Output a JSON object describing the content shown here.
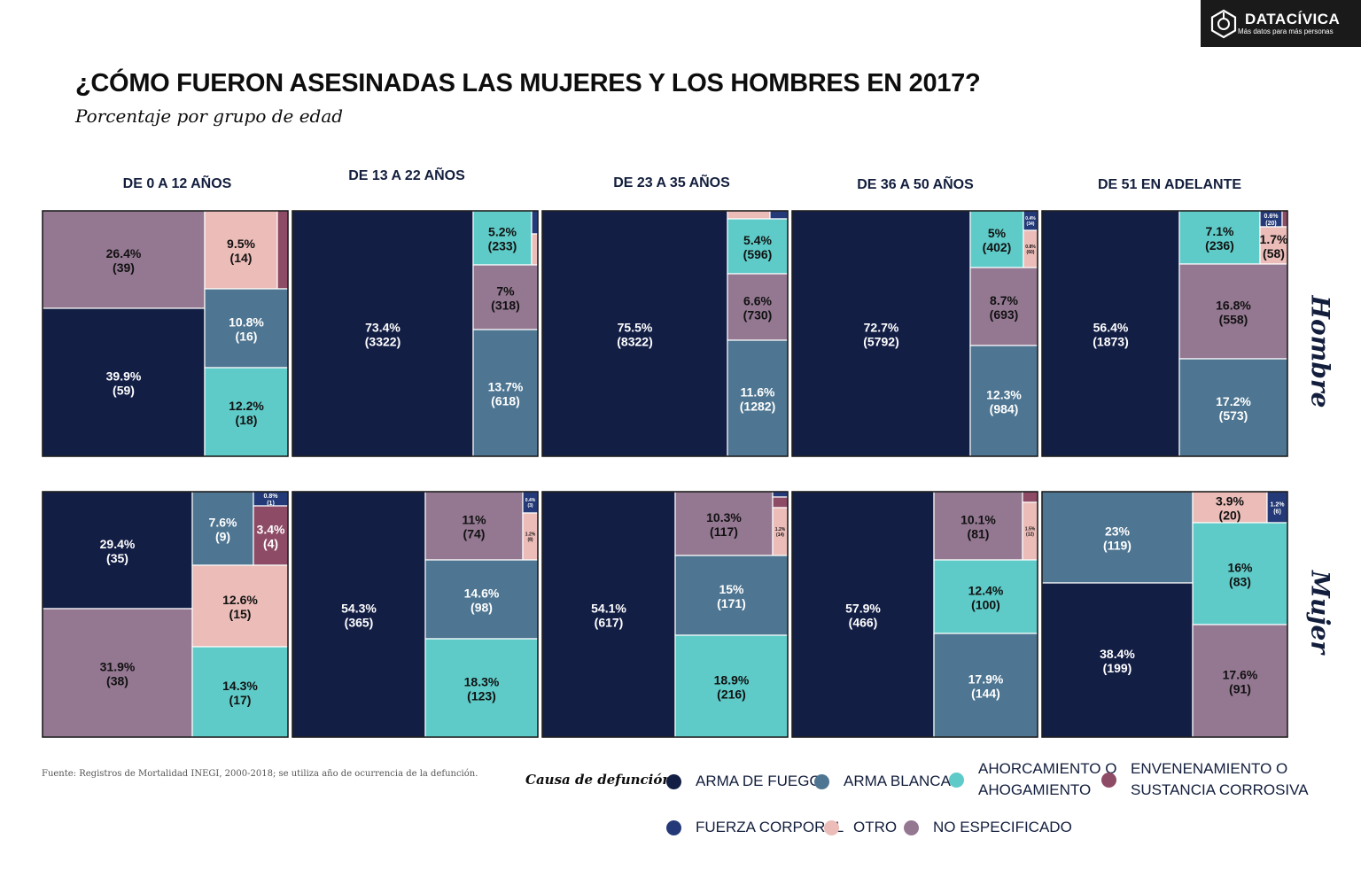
{
  "logo": {
    "name": "DATACÍVICA",
    "tagline": "Más datos para más personas",
    "icon": "datacivica-hexagon-icon"
  },
  "title": "¿CÓMO FUERON ASESINADAS LAS MUJERES Y LOS HOMBRES EN 2017?",
  "subtitle": "Porcentaje por grupo de edad",
  "source": "Fuente: Registros de Mortalidad INEGI, 2000-2018; se utiliza año de ocurrencia de la defunción.",
  "legend": {
    "title": "Causa de defunción",
    "items": [
      {
        "key": "fuego",
        "line1": "ARMA DE FUEGO",
        "line2": "",
        "color": "#131e45"
      },
      {
        "key": "blanca",
        "line1": "ARMA BLANCA",
        "line2": "",
        "color": "#4e7591"
      },
      {
        "key": "ahorc",
        "line1": "AHORCAMIENTO O",
        "line2": "AHOGAMIENTO",
        "color": "#5ecbc8"
      },
      {
        "key": "enven",
        "line1": "ENVENENAMIENTO O",
        "line2": "SUSTANCIA CORROSIVA",
        "color": "#8e4b66"
      },
      {
        "key": "fuerza",
        "line1": "FUERZA CORPORAL",
        "line2": "",
        "color": "#243a78"
      },
      {
        "key": "otro",
        "line1": "OTRO",
        "line2": "",
        "color": "#ebbcb8"
      },
      {
        "key": "noesp",
        "line1": "NO ESPECIFICADO",
        "line2": "",
        "color": "#947892"
      }
    ]
  },
  "chart_data": {
    "type": "treemap",
    "title": "¿CÓMO FUERON ASESINADAS LAS MUJERES Y LOS HOMBRES EN 2017?",
    "subtitle": "Porcentaje por grupo de edad",
    "age_groups": [
      "DE 0 A 12 AÑOS",
      "DE 13 A 22 AÑOS",
      "DE 23 A 35 AÑOS",
      "DE 36 A 50 AÑOS",
      "DE 51 EN ADELANTE"
    ],
    "rows": [
      "Hombre",
      "Mujer"
    ],
    "panels": [
      {
        "row": "Hombre",
        "group": "DE 0 A 12 AÑOS",
        "cells": [
          {
            "cat": "noesp",
            "pct": "26.4%",
            "n": "(39)"
          },
          {
            "cat": "otro",
            "pct": "9.5%",
            "n": "(14)"
          },
          {
            "cat": "enven",
            "pct": "",
            "n": ""
          },
          {
            "cat": "fuego",
            "pct": "39.9%",
            "n": "(59)"
          },
          {
            "cat": "blanca",
            "pct": "10.8%",
            "n": "(16)"
          },
          {
            "cat": "ahorc",
            "pct": "12.2%",
            "n": "(18)"
          }
        ]
      },
      {
        "row": "Hombre",
        "group": "DE 13 A 22 AÑOS",
        "cells": [
          {
            "cat": "fuego",
            "pct": "73.4%",
            "n": "(3322)"
          },
          {
            "cat": "ahorc",
            "pct": "5.2%",
            "n": "(233)"
          },
          {
            "cat": "fuerza",
            "pct": "",
            "n": ""
          },
          {
            "cat": "otro",
            "pct": "",
            "n": ""
          },
          {
            "cat": "noesp",
            "pct": "7%",
            "n": "(318)"
          },
          {
            "cat": "blanca",
            "pct": "13.7%",
            "n": "(618)"
          }
        ]
      },
      {
        "row": "Hombre",
        "group": "DE 23 A 35 AÑOS",
        "cells": [
          {
            "cat": "fuego",
            "pct": "75.5%",
            "n": "(8322)"
          },
          {
            "cat": "otro",
            "pct": "",
            "n": ""
          },
          {
            "cat": "fuerza",
            "pct": "",
            "n": ""
          },
          {
            "cat": "ahorc",
            "pct": "5.4%",
            "n": "(596)"
          },
          {
            "cat": "noesp",
            "pct": "6.6%",
            "n": "(730)"
          },
          {
            "cat": "blanca",
            "pct": "11.6%",
            "n": "(1282)"
          }
        ]
      },
      {
        "row": "Hombre",
        "group": "DE 36 A 50 AÑOS",
        "cells": [
          {
            "cat": "fuego",
            "pct": "72.7%",
            "n": "(5792)"
          },
          {
            "cat": "ahorc",
            "pct": "5%",
            "n": "(402)"
          },
          {
            "cat": "fuerza",
            "pct": "0.4%",
            "n": "(34)"
          },
          {
            "cat": "otro",
            "pct": "0.8%",
            "n": "(60)"
          },
          {
            "cat": "enven",
            "pct": "",
            "n": ""
          },
          {
            "cat": "noesp",
            "pct": "8.7%",
            "n": "(693)"
          },
          {
            "cat": "blanca",
            "pct": "12.3%",
            "n": "(984)"
          }
        ]
      },
      {
        "row": "Hombre",
        "group": "DE 51 EN ADELANTE",
        "cells": [
          {
            "cat": "fuego",
            "pct": "56.4%",
            "n": "(1873)"
          },
          {
            "cat": "ahorc",
            "pct": "7.1%",
            "n": "(236)"
          },
          {
            "cat": "fuerza",
            "pct": "0.6%",
            "n": "(20)"
          },
          {
            "cat": "enven",
            "pct": "",
            "n": ""
          },
          {
            "cat": "otro",
            "pct": "1.7%",
            "n": "(58)"
          },
          {
            "cat": "noesp",
            "pct": "16.8%",
            "n": "(558)"
          },
          {
            "cat": "blanca",
            "pct": "17.2%",
            "n": "(573)"
          }
        ]
      },
      {
        "row": "Mujer",
        "group": "DE 0 A 12 AÑOS",
        "cells": [
          {
            "cat": "fuego",
            "pct": "29.4%",
            "n": "(35)"
          },
          {
            "cat": "blanca",
            "pct": "7.6%",
            "n": "(9)"
          },
          {
            "cat": "fuerza",
            "pct": "0.8%",
            "n": "(1)"
          },
          {
            "cat": "enven",
            "pct": "3.4%",
            "n": "(4)"
          },
          {
            "cat": "noesp",
            "pct": "31.9%",
            "n": "(38)"
          },
          {
            "cat": "otro",
            "pct": "12.6%",
            "n": "(15)"
          },
          {
            "cat": "ahorc",
            "pct": "14.3%",
            "n": "(17)"
          }
        ]
      },
      {
        "row": "Mujer",
        "group": "DE 13 A 22 AÑOS",
        "cells": [
          {
            "cat": "fuego",
            "pct": "54.3%",
            "n": "(365)"
          },
          {
            "cat": "noesp",
            "pct": "11%",
            "n": "(74)"
          },
          {
            "cat": "fuerza",
            "pct": "0.4%",
            "n": "(3)"
          },
          {
            "cat": "otro",
            "pct": "1.2%",
            "n": "(8)"
          },
          {
            "cat": "blanca",
            "pct": "14.6%",
            "n": "(98)"
          },
          {
            "cat": "ahorc",
            "pct": "18.3%",
            "n": "(123)"
          }
        ]
      },
      {
        "row": "Mujer",
        "group": "DE 23 A 35 AÑOS",
        "cells": [
          {
            "cat": "fuego",
            "pct": "54.1%",
            "n": "(617)"
          },
          {
            "cat": "noesp",
            "pct": "10.3%",
            "n": "(117)"
          },
          {
            "cat": "fuerza",
            "pct": "",
            "n": ""
          },
          {
            "cat": "enven",
            "pct": "",
            "n": ""
          },
          {
            "cat": "otro",
            "pct": "1.2%",
            "n": "(14)"
          },
          {
            "cat": "blanca",
            "pct": "15%",
            "n": "(171)"
          },
          {
            "cat": "ahorc",
            "pct": "18.9%",
            "n": "(216)"
          }
        ]
      },
      {
        "row": "Mujer",
        "group": "DE 36 A 50 AÑOS",
        "cells": [
          {
            "cat": "fuego",
            "pct": "57.9%",
            "n": "(466)"
          },
          {
            "cat": "noesp",
            "pct": "10.1%",
            "n": "(81)"
          },
          {
            "cat": "enven",
            "pct": "",
            "n": ""
          },
          {
            "cat": "otro",
            "pct": "1.5%",
            "n": "(12)"
          },
          {
            "cat": "ahorc",
            "pct": "12.4%",
            "n": "(100)"
          },
          {
            "cat": "blanca",
            "pct": "17.9%",
            "n": "(144)"
          }
        ]
      },
      {
        "row": "Mujer",
        "group": "DE 51 EN ADELANTE",
        "cells": [
          {
            "cat": "blanca",
            "pct": "23%",
            "n": "(119)"
          },
          {
            "cat": "otro",
            "pct": "3.9%",
            "n": "(20)"
          },
          {
            "cat": "fuerza",
            "pct": "1.2%",
            "n": "(6)"
          },
          {
            "cat": "ahorc",
            "pct": "16%",
            "n": "(83)"
          },
          {
            "cat": "fuego",
            "pct": "38.4%",
            "n": "(199)"
          },
          {
            "cat": "noesp",
            "pct": "17.6%",
            "n": "(91)"
          }
        ]
      }
    ]
  }
}
